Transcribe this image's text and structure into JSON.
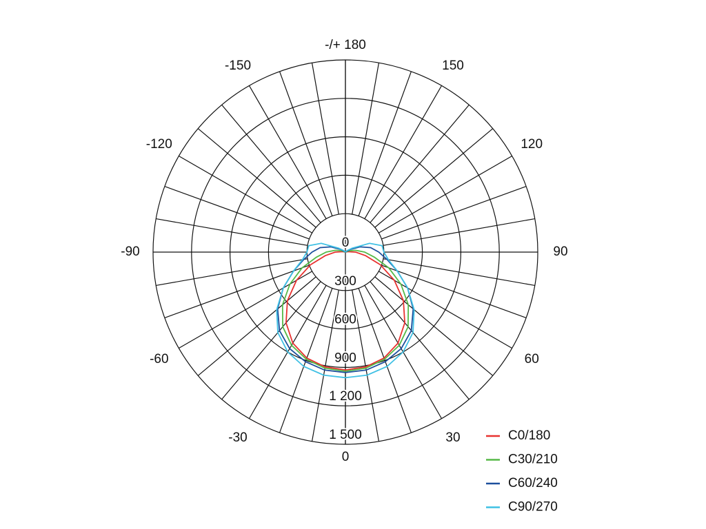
{
  "chart_data": {
    "type": "polar",
    "x": [
      -180,
      -170,
      -160,
      -150,
      -140,
      -130,
      -120,
      -110,
      -100,
      -90,
      -80,
      -70,
      -60,
      -50,
      -40,
      -30,
      -20,
      -10,
      0,
      10,
      20,
      30,
      40,
      50,
      60,
      70,
      80,
      90,
      100,
      110,
      120,
      130,
      140,
      150,
      160,
      170,
      180
    ],
    "series": [
      {
        "name": "C0/180",
        "color": "#e8312f",
        "values": [
          0,
          0,
          0,
          0,
          0,
          0,
          0,
          0,
          20,
          80,
          160,
          290,
          440,
          590,
          720,
          820,
          880,
          910,
          920,
          910,
          880,
          820,
          720,
          590,
          440,
          290,
          160,
          80,
          20,
          0,
          0,
          0,
          0,
          0,
          0,
          0,
          0
        ]
      },
      {
        "name": "C30/210",
        "color": "#55b947",
        "values": [
          0,
          0,
          0,
          0,
          0,
          0,
          0,
          30,
          80,
          150,
          230,
          360,
          500,
          640,
          760,
          840,
          890,
          920,
          930,
          920,
          890,
          840,
          760,
          640,
          500,
          360,
          230,
          150,
          80,
          30,
          0,
          0,
          0,
          0,
          0,
          0,
          0
        ]
      },
      {
        "name": "C60/240",
        "color": "#1c4f9c",
        "values": [
          0,
          0,
          0,
          0,
          0,
          0,
          40,
          120,
          200,
          260,
          330,
          430,
          560,
          690,
          800,
          870,
          910,
          935,
          940,
          935,
          910,
          870,
          800,
          690,
          560,
          430,
          330,
          260,
          200,
          120,
          40,
          0,
          0,
          0,
          0,
          0,
          0
        ]
      },
      {
        "name": "C90/270",
        "color": "#3fc0e4",
        "values": [
          0,
          0,
          0,
          0,
          0,
          20,
          60,
          200,
          290,
          300,
          340,
          430,
          560,
          700,
          820,
          900,
          950,
          975,
          980,
          975,
          950,
          900,
          820,
          700,
          560,
          430,
          340,
          300,
          290,
          200,
          60,
          20,
          0,
          0,
          0,
          0,
          0
        ]
      }
    ],
    "rlim": [
      0,
      1500
    ],
    "rticks": [
      0,
      300,
      600,
      900,
      {
        "value": 1200,
        "label": "1 200"
      },
      {
        "value": 1500,
        "label": "1 500"
      }
    ],
    "angle_ticks": [
      0,
      30,
      60,
      90,
      120,
      150,
      {
        "value": 180,
        "label": "-/+ 180"
      },
      -150,
      -120,
      -90,
      -60,
      -30
    ],
    "legend": "lower right"
  }
}
